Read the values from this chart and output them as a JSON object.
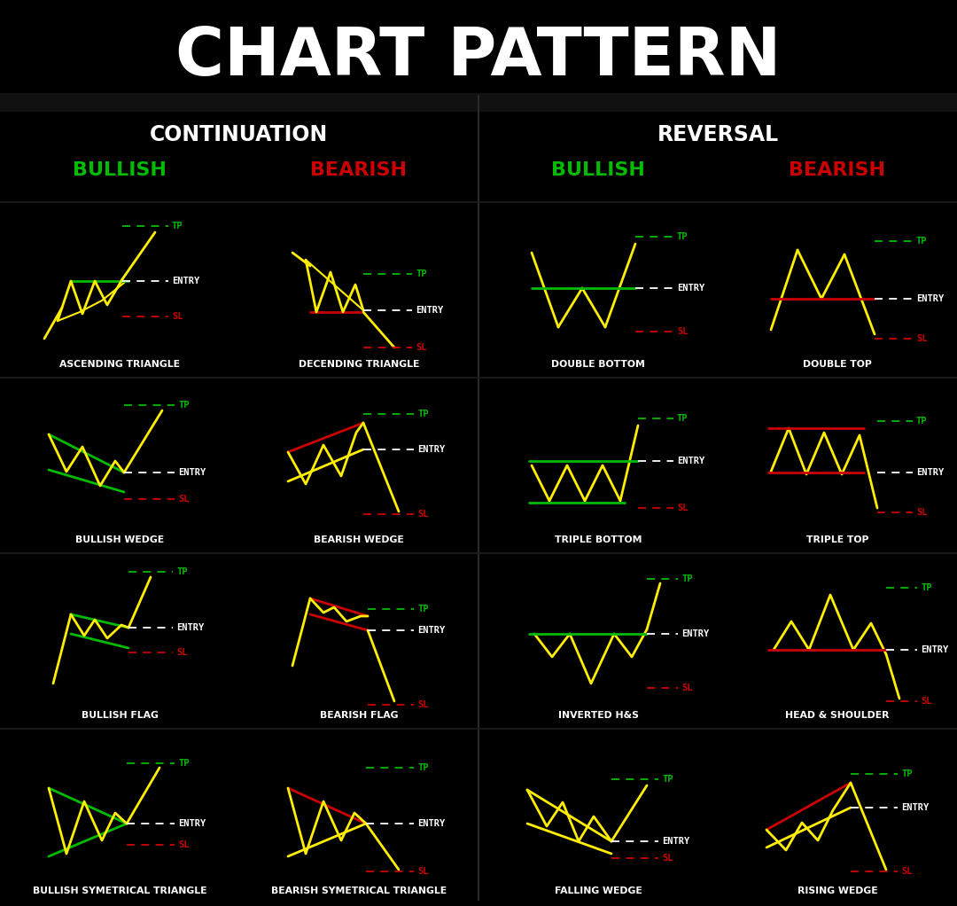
{
  "bg_color": "#000000",
  "title": "CHART PATTERN",
  "title_color": "#ffffff",
  "bullish_color": "#00bb00",
  "bearish_color": "#cc0000",
  "yellow_color": "#ffee00",
  "green_line_color": "#00bb00",
  "red_line_color": "#cc0000",
  "white_color": "#ffffff",
  "continuation_title": "CONTINUATION",
  "reversal_title": "REVERSAL",
  "bullish_label": "BULLISH",
  "bearish_label": "BEARISH",
  "patterns": [
    {
      "name": "ASCENDING TRIANGLE",
      "col": 0,
      "row": 0
    },
    {
      "name": "DECENDING TRIANGLE",
      "col": 1,
      "row": 0
    },
    {
      "name": "DOUBLE BOTTOM",
      "col": 2,
      "row": 0
    },
    {
      "name": "DOUBLE TOP",
      "col": 3,
      "row": 0
    },
    {
      "name": "BULLISH WEDGE",
      "col": 0,
      "row": 1
    },
    {
      "name": "BEARISH WEDGE",
      "col": 1,
      "row": 1
    },
    {
      "name": "TRIPLE BOTTOM",
      "col": 2,
      "row": 1
    },
    {
      "name": "TRIPLE TOP",
      "col": 3,
      "row": 1
    },
    {
      "name": "BULLISH FLAG",
      "col": 0,
      "row": 2
    },
    {
      "name": "BEARISH FLAG",
      "col": 1,
      "row": 2
    },
    {
      "name": "INVERTED H&S",
      "col": 2,
      "row": 2
    },
    {
      "name": "HEAD & SHOULDER",
      "col": 3,
      "row": 2
    },
    {
      "name": "BULLISH SYMETRICAL TRIANGLE",
      "col": 0,
      "row": 3
    },
    {
      "name": "BEARISH SYMETRICAL TRIANGLE",
      "col": 1,
      "row": 3
    },
    {
      "name": "FALLING WEDGE",
      "col": 2,
      "row": 3
    },
    {
      "name": "RISING WEDGE",
      "col": 3,
      "row": 3
    }
  ]
}
